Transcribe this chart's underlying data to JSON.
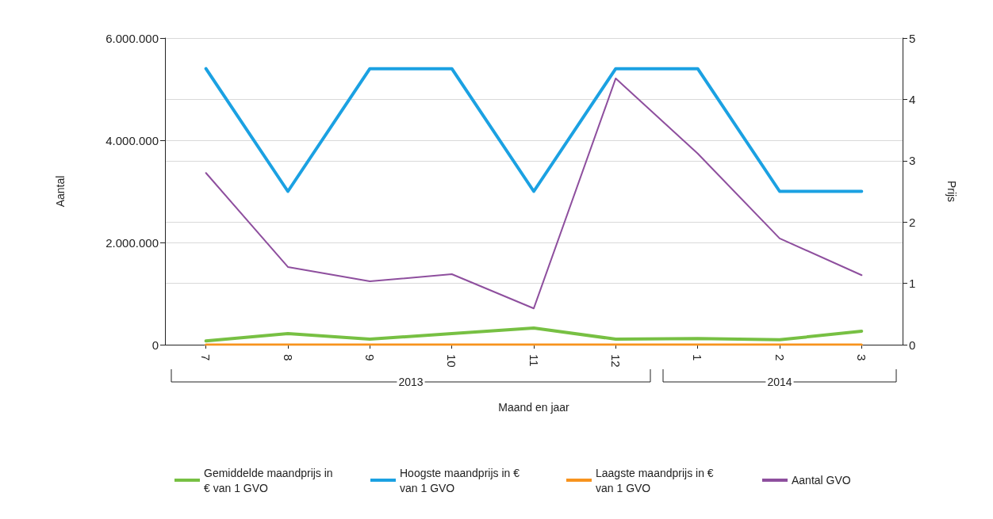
{
  "chart_data": {
    "type": "line",
    "xlabel": "Maand en jaar",
    "ylabel": "Aantal",
    "y2label": "Prijs",
    "categories": [
      "7",
      "8",
      "9",
      "10",
      "11",
      "12",
      "1",
      "2",
      "3"
    ],
    "series": [
      {
        "name": "Gemiddelde maandprijs in € van 1 GVO",
        "color": "#77c043",
        "axis": "y2",
        "values": [
          0.06,
          0.18,
          0.09,
          0.18,
          0.27,
          0.09,
          0.1,
          0.08,
          0.22
        ]
      },
      {
        "name": "Hoogste maandprijs in € van 1 GVO",
        "color": "#1ba1e2",
        "axis": "y2",
        "values": [
          4.5,
          2.5,
          4.5,
          4.5,
          2.5,
          4.5,
          4.5,
          2.5,
          2.5
        ]
      },
      {
        "name": "Laagste maandprijs in € van 1 GVO",
        "color": "#f7931e",
        "axis": "y2",
        "values": [
          0,
          0,
          0,
          0,
          0,
          0,
          0,
          0,
          0
        ]
      },
      {
        "name": "Aantal GVO",
        "color": "#8e4f9e",
        "values": [
          3360000,
          1520000,
          1240000,
          1380000,
          710000,
          5210000,
          3740000,
          2080000,
          1360000
        ]
      }
    ],
    "ylim": [
      0,
      6000000
    ],
    "yticks": [
      {
        "value": 0,
        "label": "0"
      },
      {
        "value": 2000000,
        "label": "2.000.000"
      },
      {
        "value": 4000000,
        "label": "4.000.000"
      },
      {
        "value": 6000000,
        "label": "6.000.000"
      }
    ],
    "y2lim": [
      0,
      5
    ],
    "y2ticks": [
      0,
      1,
      2,
      3,
      4,
      5
    ],
    "annotations": [
      "2013",
      "2014"
    ],
    "grid": "y",
    "legend": "bottom",
    "marker": "none",
    "line_style": "solid"
  }
}
